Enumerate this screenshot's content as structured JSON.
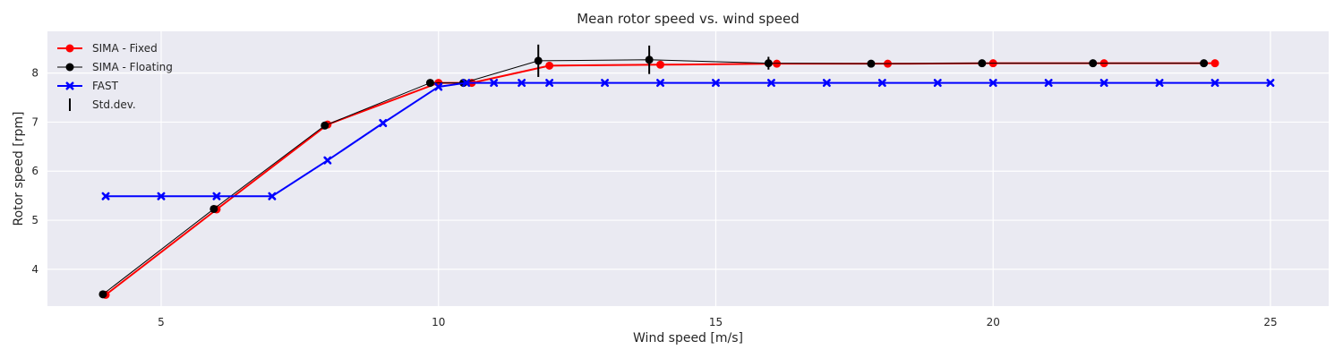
{
  "chart_data": {
    "type": "line",
    "title": "Mean rotor speed vs. wind speed",
    "xlabel": "Wind speed [m/s]",
    "ylabel": "Rotor speed [rpm]",
    "xlim": [
      2.95,
      26.05
    ],
    "ylim": [
      3.25,
      8.85
    ],
    "xticks": [
      5,
      10,
      15,
      20,
      25
    ],
    "yticks": [
      4,
      5,
      6,
      7,
      8
    ],
    "grid": true,
    "legend_position": "top-left",
    "background_color": "#eaeaf2",
    "series": [
      {
        "name": "SIMA - Fixed",
        "color": "#ff0000",
        "marker": "circle",
        "line_width": 2,
        "x": [
          4,
          6,
          8,
          10,
          10.6,
          12,
          14,
          16.1,
          18.1,
          20.0,
          22.0,
          24.0
        ],
        "y": [
          3.48,
          5.22,
          6.95,
          7.8,
          7.8,
          8.15,
          8.17,
          8.19,
          8.19,
          8.2,
          8.2,
          8.2
        ]
      },
      {
        "name": "SIMA - Floating",
        "color": "#000000",
        "marker": "circle",
        "line_width": 1,
        "x": [
          3.95,
          5.95,
          7.95,
          9.85,
          10.45,
          11.8,
          13.8,
          15.95,
          17.8,
          19.8,
          21.8,
          23.8
        ],
        "y": [
          3.49,
          5.23,
          6.93,
          7.8,
          7.8,
          8.25,
          8.27,
          8.2,
          8.19,
          8.2,
          8.2,
          8.2
        ],
        "std": [
          0,
          0,
          0,
          0,
          0,
          0.33,
          0.29,
          0.13,
          0,
          0,
          0,
          0
        ]
      },
      {
        "name": "FAST",
        "color": "#0000ff",
        "marker": "x",
        "line_width": 2,
        "x": [
          4,
          5,
          6,
          7,
          8,
          9,
          10,
          10.5,
          11,
          11.5,
          12,
          13,
          14,
          15,
          16,
          17,
          18,
          19,
          20,
          21,
          22,
          23,
          24,
          25
        ],
        "y": [
          5.49,
          5.49,
          5.49,
          5.49,
          6.22,
          6.98,
          7.72,
          7.8,
          7.8,
          7.8,
          7.8,
          7.8,
          7.8,
          7.8,
          7.8,
          7.8,
          7.8,
          7.8,
          7.8,
          7.8,
          7.8,
          7.8,
          7.8,
          7.8
        ]
      }
    ],
    "legend": [
      {
        "label": "SIMA - Fixed",
        "kind": "line-marker",
        "color": "#ff0000"
      },
      {
        "label": "SIMA - Floating",
        "kind": "line-marker",
        "color": "#000000"
      },
      {
        "label": "FAST",
        "kind": "line-x",
        "color": "#0000ff"
      },
      {
        "label": "Std.dev.",
        "kind": "errorbar",
        "color": "#000000"
      }
    ]
  }
}
